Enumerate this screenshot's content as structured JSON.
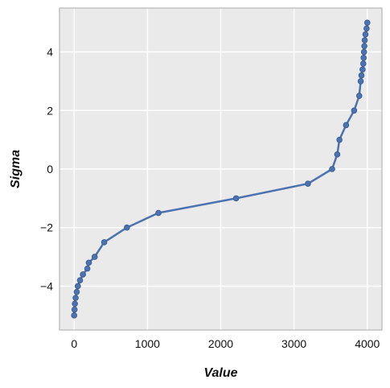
{
  "chart_data": {
    "type": "line",
    "title": "",
    "xlabel": "Value",
    "ylabel": "Sigma",
    "xlim": [
      -200,
      4200
    ],
    "ylim": [
      -5.5,
      5.5
    ],
    "xticks": [
      0,
      1000,
      2000,
      3000,
      4000
    ],
    "yticks": [
      -4,
      -2,
      0,
      2,
      4
    ],
    "xtick_labels": [
      "0",
      "1000",
      "2000",
      "3000",
      "4000"
    ],
    "ytick_labels": [
      "−4",
      "−2",
      "0",
      "2",
      "4"
    ],
    "grid": true,
    "legend": "none",
    "series": [
      {
        "markers": true,
        "x": [
          0,
          5,
          10,
          20,
          35,
          50,
          80,
          120,
          180,
          200,
          280,
          410,
          720,
          1150,
          2210,
          3190,
          3520,
          3590,
          3620,
          3710,
          3820,
          3890,
          3910,
          3920,
          3935,
          3945,
          3950,
          3955,
          3960,
          3965,
          3975,
          3990,
          4000
        ],
        "y": [
          -5.0,
          -4.8,
          -4.6,
          -4.4,
          -4.2,
          -4.0,
          -3.8,
          -3.6,
          -3.4,
          -3.2,
          -3.0,
          -2.5,
          -2.0,
          -1.5,
          -1.0,
          -0.5,
          0.0,
          0.5,
          1.0,
          1.5,
          2.0,
          2.5,
          3.0,
          3.2,
          3.4,
          3.6,
          3.8,
          4.0,
          4.2,
          4.4,
          4.6,
          4.8,
          5.0
        ]
      }
    ],
    "colors": {
      "line": "#4c72b0",
      "plot_bg": "#eaeaea",
      "grid": "#ffffff",
      "frame": "#aaaaaa"
    }
  }
}
